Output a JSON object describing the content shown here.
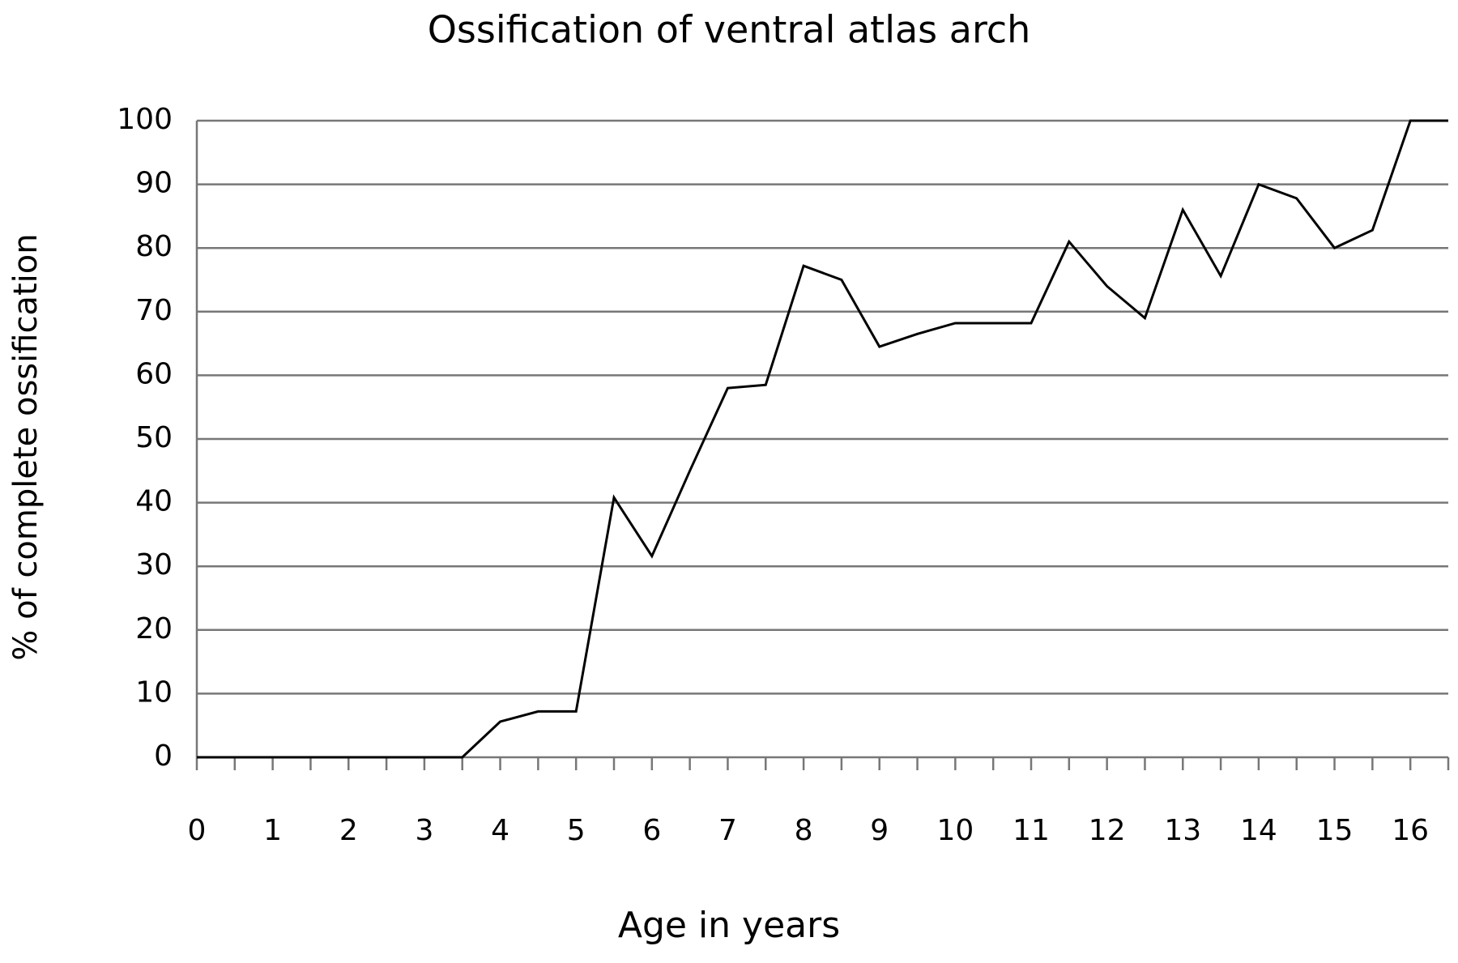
{
  "chart_data": {
    "type": "line",
    "title": "Ossification of ventral atlas arch",
    "x_label": "Age in years",
    "y_label": "% of complete ossification",
    "x": [
      0,
      0.5,
      1,
      1.5,
      2,
      2.5,
      3,
      3.5,
      4,
      4.5,
      5,
      5.5,
      6,
      6.5,
      7,
      7.5,
      8,
      8.5,
      9,
      9.5,
      10,
      10.5,
      11,
      11.5,
      12,
      12.5,
      13,
      13.5,
      14,
      14.5,
      15,
      15.5,
      16,
      16.5
    ],
    "series": [
      {
        "color": "#000000",
        "values": [
          0,
          0,
          0,
          0,
          0,
          0,
          0,
          0,
          5.6,
          7.2,
          7.2,
          40.8,
          31.6,
          45,
          58,
          58.5,
          77.2,
          75,
          64.5,
          66.5,
          68.2,
          68.2,
          68.2,
          81,
          74,
          69,
          86,
          75.6,
          90,
          87.8,
          80,
          82.8,
          100,
          100
        ]
      }
    ],
    "xlim": [
      0,
      16.5
    ],
    "xticks": [
      0,
      1,
      2,
      3,
      4,
      5,
      6,
      7,
      8,
      9,
      10,
      11,
      12,
      13,
      14,
      15,
      16
    ],
    "ylim": [
      0,
      100
    ],
    "yticks": [
      0,
      10,
      20,
      30,
      40,
      50,
      60,
      70,
      80,
      90,
      100
    ],
    "grid": true
  }
}
